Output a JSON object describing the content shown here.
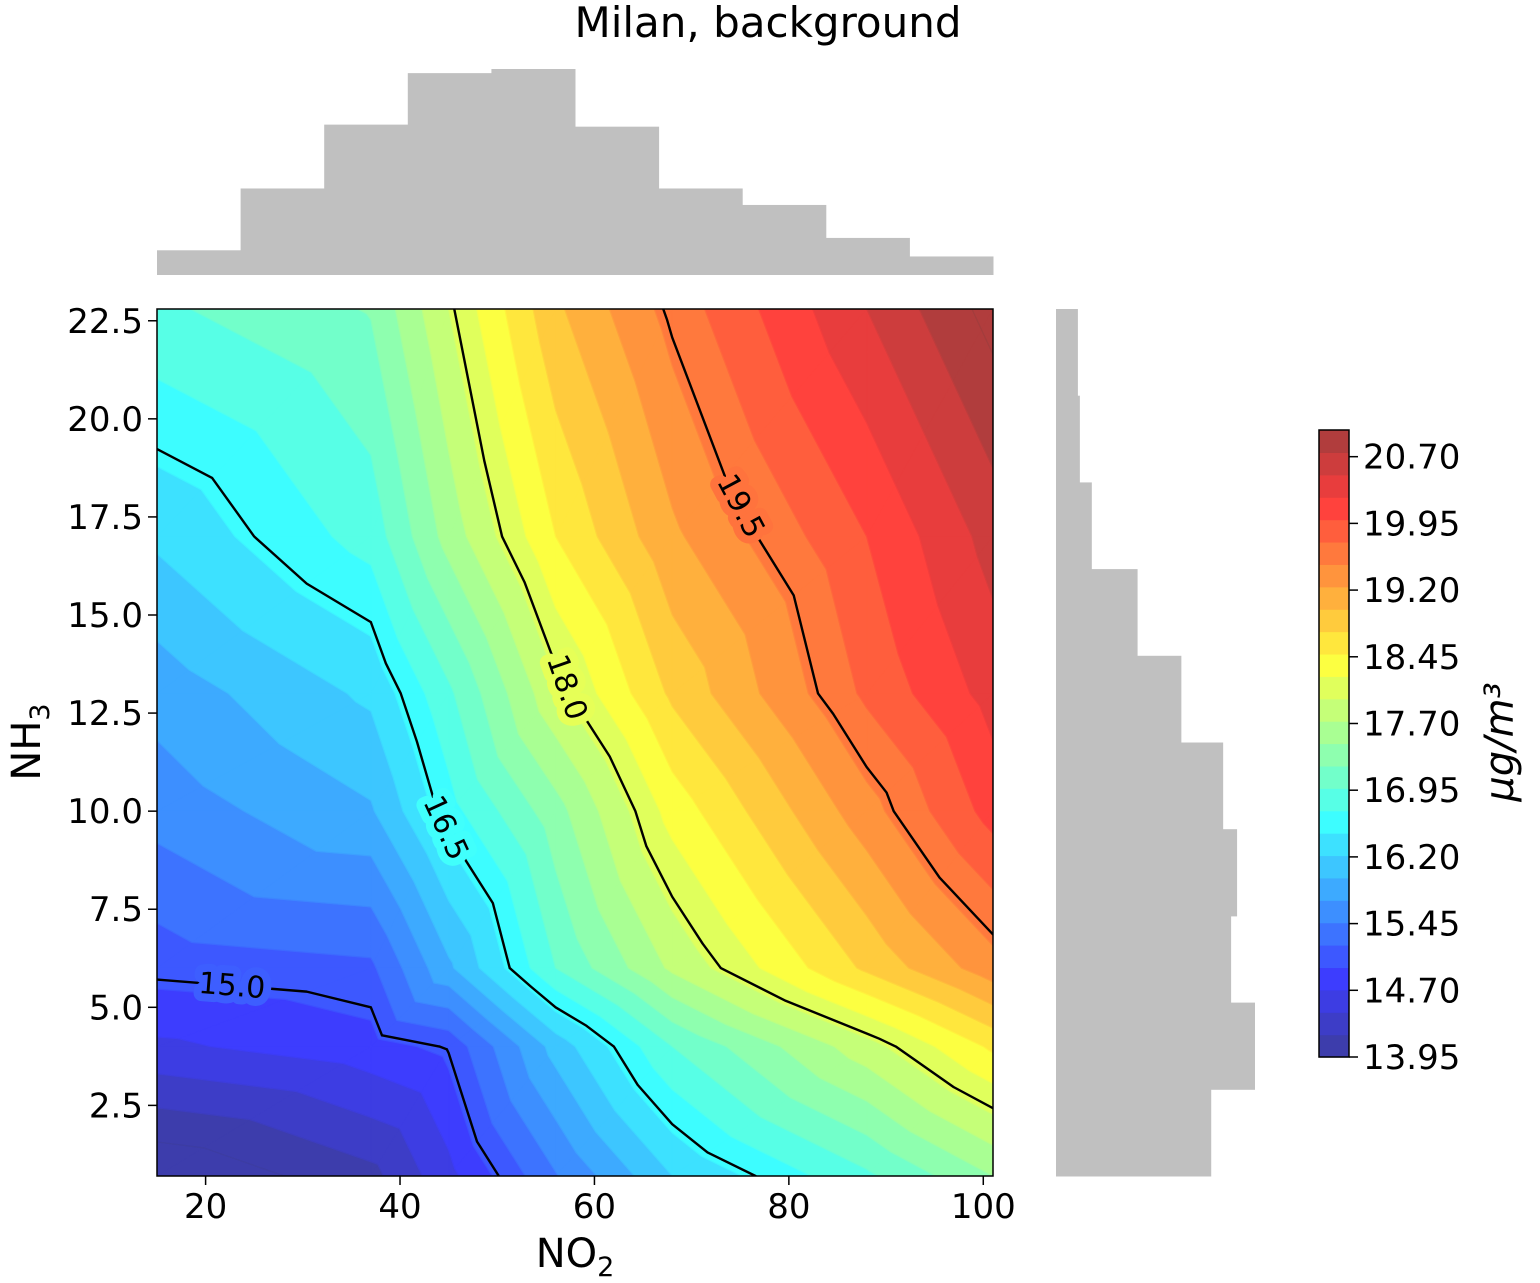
{
  "chart_data": {
    "type": "contour",
    "title": "Milan, background",
    "xlabel": {
      "base": "NO",
      "sub": "2"
    },
    "ylabel": {
      "base": "NH",
      "sub": "3"
    },
    "xlim": [
      15,
      101
    ],
    "ylim": [
      0.7,
      22.8
    ],
    "xticks": [
      {
        "value": 20,
        "label": "20"
      },
      {
        "value": 40,
        "label": "40"
      },
      {
        "value": 60,
        "label": "60"
      },
      {
        "value": 80,
        "label": "80"
      },
      {
        "value": 100,
        "label": "100"
      }
    ],
    "yticks": [
      {
        "value": 2.5,
        "label": "2.5"
      },
      {
        "value": 5.0,
        "label": "5.0"
      },
      {
        "value": 7.5,
        "label": "7.5"
      },
      {
        "value": 10.0,
        "label": "10.0"
      },
      {
        "value": 12.5,
        "label": "12.5"
      },
      {
        "value": 15.0,
        "label": "15.0"
      },
      {
        "value": 17.5,
        "label": "17.5"
      },
      {
        "value": 20.0,
        "label": "20.0"
      },
      {
        "value": 22.5,
        "label": "22.5"
      }
    ],
    "grid": {
      "x": [
        15,
        37,
        45,
        56,
        68,
        88,
        101
      ],
      "y": [
        0.7,
        4.0,
        6.0,
        10.0,
        13.0,
        17.0,
        22.8
      ],
      "z": [
        [
          13.7,
          14.12,
          14.62,
          15.43,
          16.2,
          16.9,
          17.45
        ],
        [
          14.65,
          14.85,
          15.02,
          16.05,
          16.95,
          17.85,
          18.5
        ],
        [
          15.06,
          15.15,
          15.9,
          16.95,
          17.75,
          18.75,
          19.35
        ],
        [
          15.55,
          15.92,
          16.6,
          17.35,
          18.3,
          19.35,
          20.05
        ],
        [
          15.8,
          16.25,
          16.9,
          17.9,
          18.75,
          19.75,
          20.3
        ],
        [
          16.25,
          16.8,
          17.55,
          18.45,
          19.15,
          19.95,
          20.55
        ],
        [
          16.9,
          17.22,
          17.95,
          18.9,
          19.55,
          20.45,
          21.05
        ]
      ]
    },
    "filled_levels": {
      "min": 13.95,
      "max": 21.0,
      "step": 0.25
    },
    "contour_lines": [
      {
        "level": 15.0,
        "label": "15.0"
      },
      {
        "level": 16.5,
        "label": "16.5"
      },
      {
        "level": 18.0,
        "label": "18.0"
      },
      {
        "level": 19.5,
        "label": "19.5"
      }
    ],
    "colormap": "jet",
    "colorbar": {
      "label": "μg/m³",
      "ticks": [
        "13.95",
        "14.70",
        "15.45",
        "16.20",
        "16.95",
        "17.70",
        "18.45",
        "19.20",
        "19.95",
        "20.70"
      ]
    },
    "marginal_x_histogram": {
      "bin_edges": [
        15,
        23.6,
        32.2,
        40.8,
        49.4,
        58,
        66.6,
        75.2,
        83.8,
        92.4,
        101
      ],
      "counts": [
        0.12,
        0.42,
        0.73,
        0.98,
        1.0,
        0.72,
        0.42,
        0.34,
        0.18,
        0.09
      ],
      "color": "#c0c0c0"
    },
    "marginal_y_histogram": {
      "bin_edges": [
        0.7,
        2.91,
        5.12,
        7.33,
        9.54,
        11.75,
        13.96,
        16.17,
        18.38,
        20.59,
        22.8
      ],
      "counts": [
        0.78,
        1.0,
        0.88,
        0.91,
        0.84,
        0.63,
        0.41,
        0.18,
        0.12,
        0.11
      ],
      "color": "#c0c0c0"
    }
  }
}
